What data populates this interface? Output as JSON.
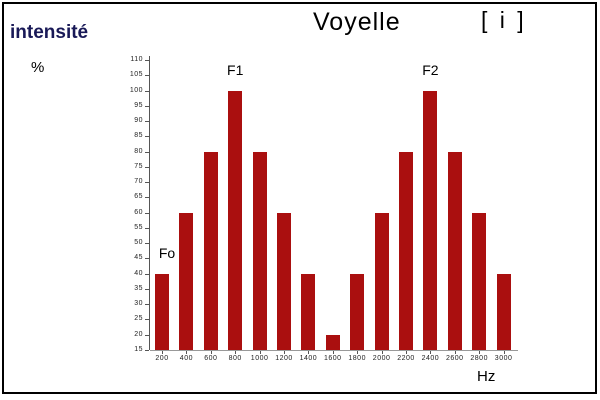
{
  "header": {
    "ylabel_title": "intensité",
    "ylabel_unit": "%",
    "title": "Voyelle",
    "phoneme": "[ i ]",
    "xlabel": "Hz"
  },
  "chart_data": {
    "type": "bar",
    "title": "Voyelle [ i ]",
    "xlabel": "Hz",
    "ylabel": "intensité %",
    "categories": [
      "200",
      "400",
      "600",
      "800",
      "1000",
      "1200",
      "1400",
      "1600",
      "1800",
      "2000",
      "2200",
      "2400",
      "2600",
      "2800",
      "3000"
    ],
    "values": [
      40,
      60,
      80,
      100,
      80,
      60,
      40,
      20,
      40,
      60,
      80,
      100,
      80,
      60,
      40
    ],
    "ylim": [
      15,
      110
    ],
    "ytick_step": 5,
    "grid": false,
    "legend": false,
    "bar_color": "#AA0F0F",
    "annotations": [
      {
        "text": "Fo",
        "category": "200"
      },
      {
        "text": "F1",
        "category": "800"
      },
      {
        "text": "F2",
        "category": "2400"
      }
    ]
  },
  "colors": {
    "bar": "#AA0F0F",
    "ylabel_title_text": "#191957",
    "axis": "#555555",
    "baseline": "#999999",
    "frame_border": "#000000",
    "background": "#FFFFFF"
  }
}
